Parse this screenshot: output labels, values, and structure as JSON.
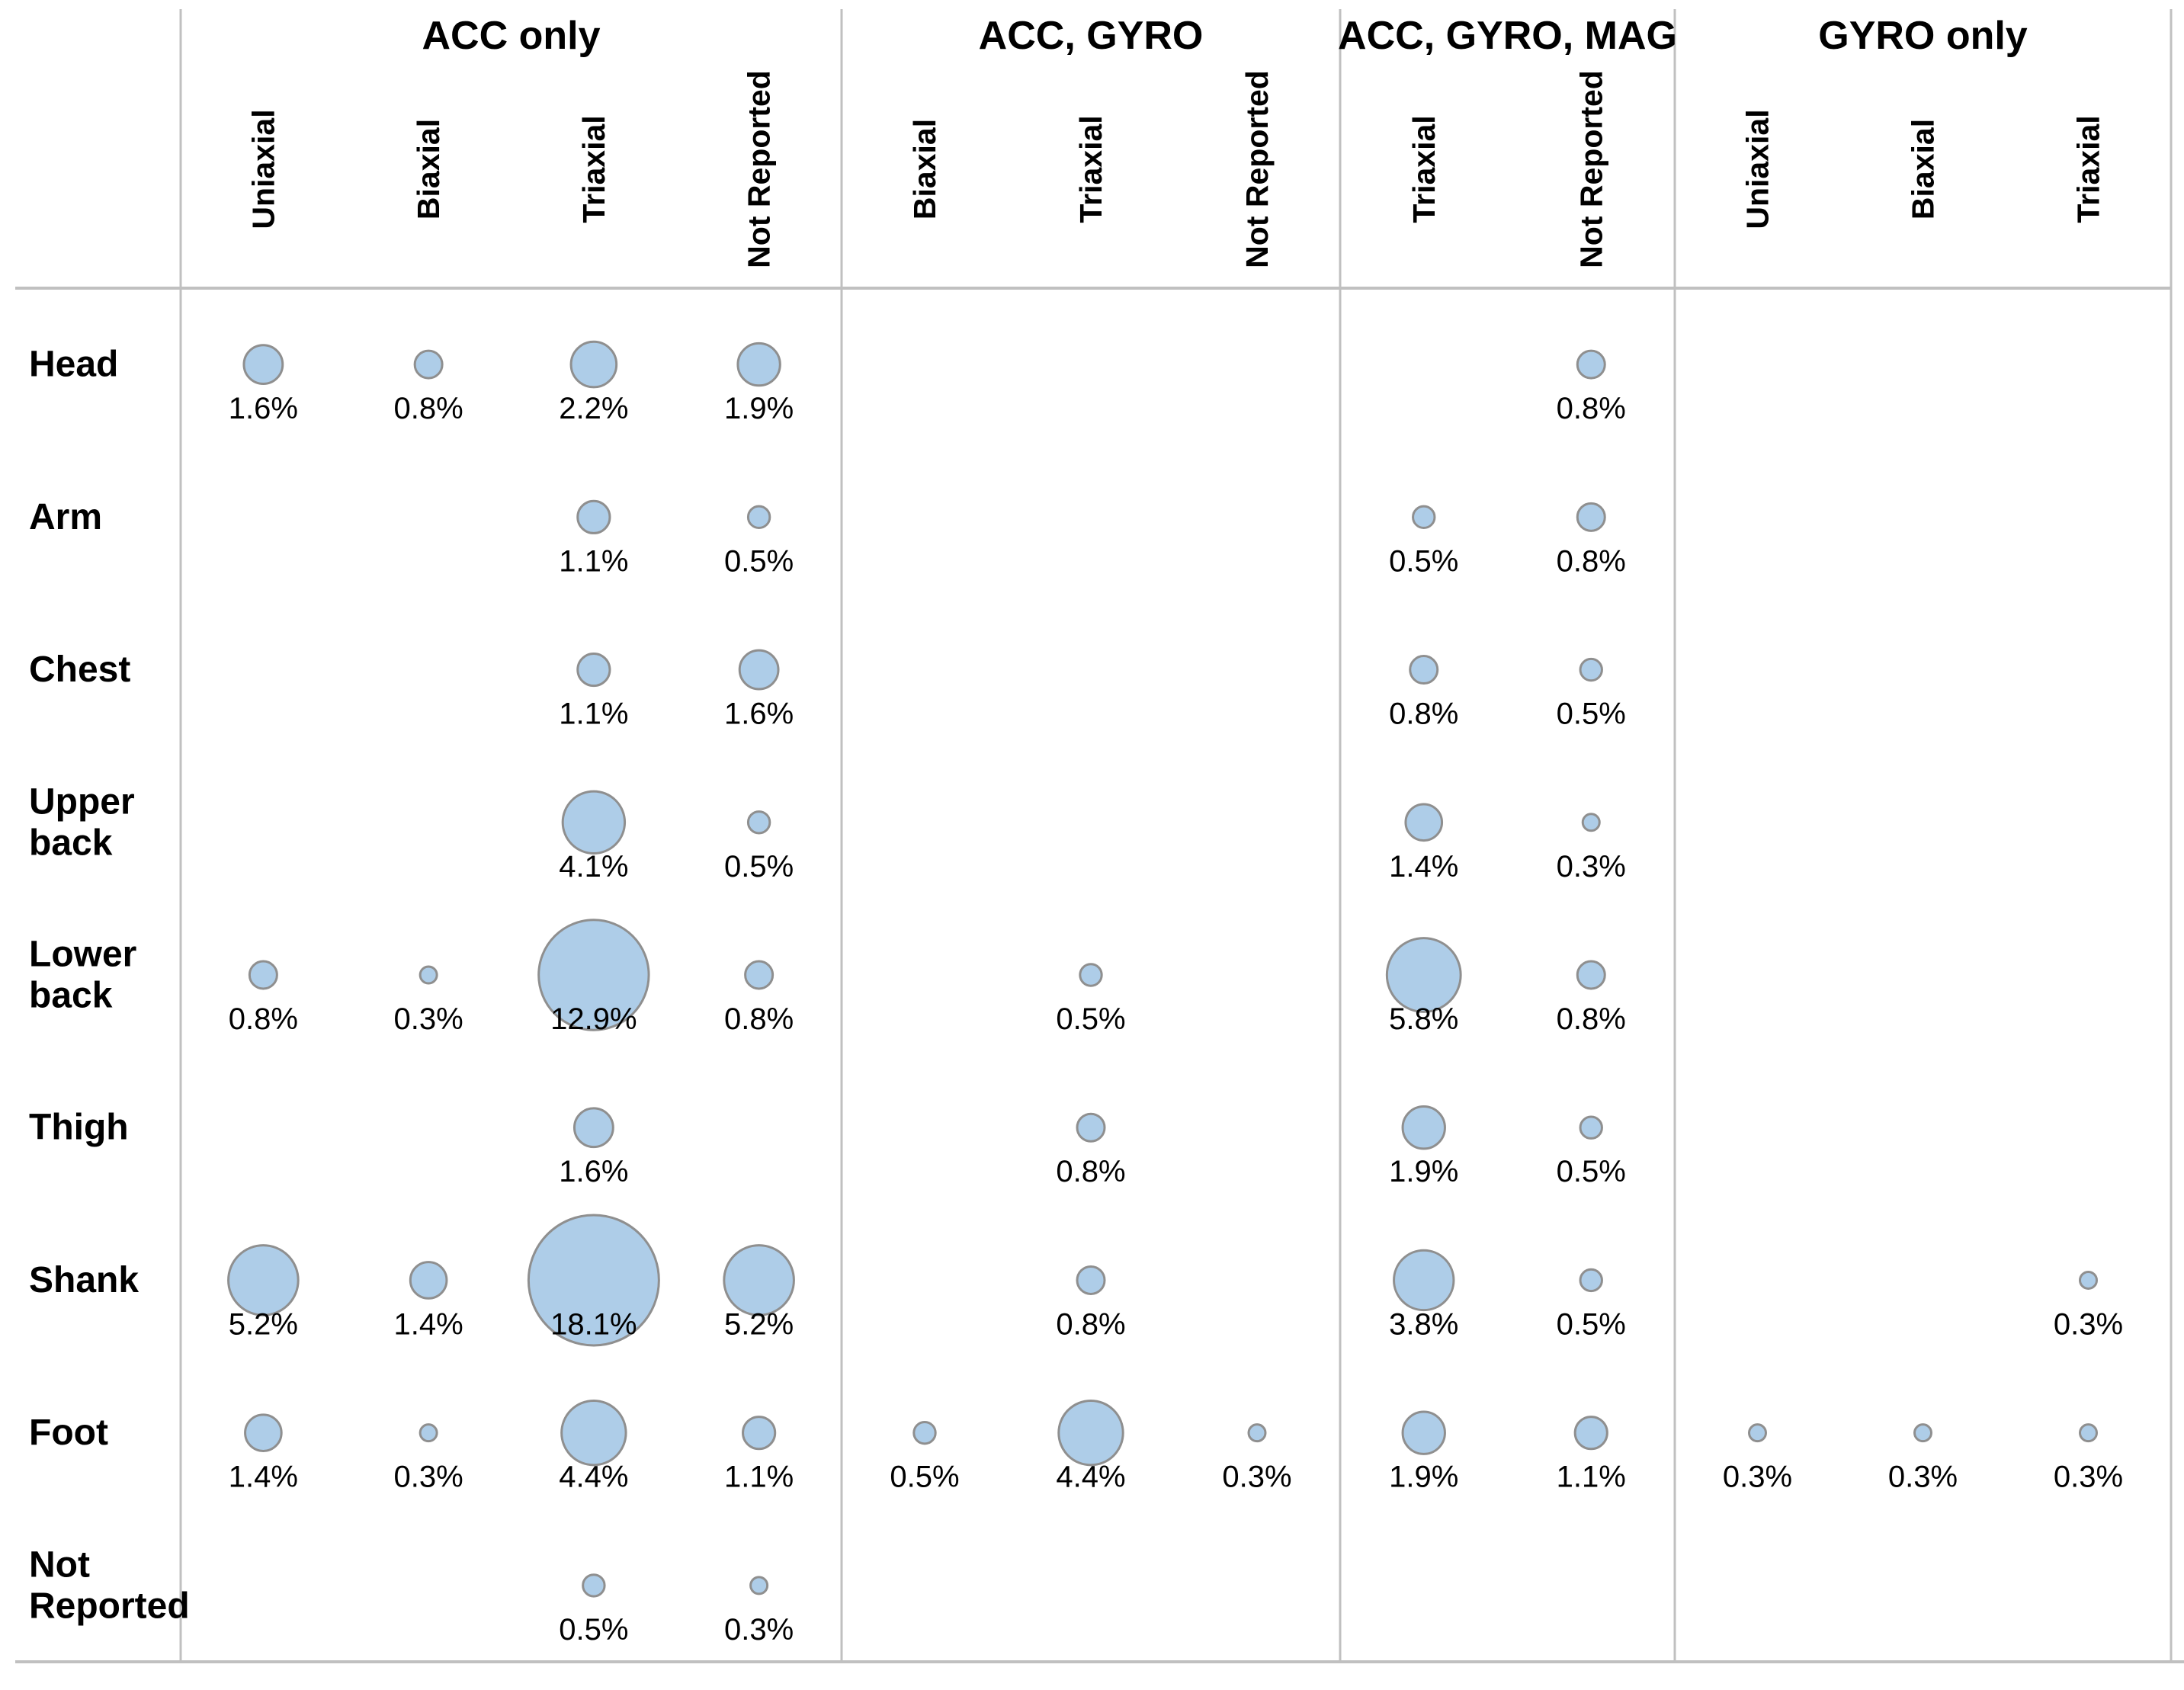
{
  "chart_data": {
    "type": "bubble-matrix",
    "title": "",
    "unit": "%",
    "bubble_fill": "#AECDE8",
    "bubble_stroke": "#8F8F8F",
    "grid_color": "#C0C0C0",
    "groups": [
      {
        "label": "ACC only",
        "columns": [
          "Uniaxial",
          "Biaxial",
          "Triaxial",
          "Not Reported"
        ]
      },
      {
        "label": "ACC, GYRO",
        "columns": [
          "Biaxial",
          "Triaxial",
          "Not Reported"
        ]
      },
      {
        "label": "ACC, GYRO, MAG",
        "columns": [
          "Triaxial",
          "Not Reported"
        ]
      },
      {
        "label": "GYRO only",
        "columns": [
          "Uniaxial",
          "Biaxial",
          "Triaxial"
        ]
      }
    ],
    "rows": [
      "Head",
      "Arm",
      "Chest",
      "Upper back",
      "Lower back",
      "Thigh",
      "Shank",
      "Foot",
      "Not Reported"
    ],
    "values": [
      {
        "row": "Head",
        "group": 0,
        "column": "Uniaxial",
        "value": 1.6,
        "label": "1.6%"
      },
      {
        "row": "Head",
        "group": 0,
        "column": "Biaxial",
        "value": 0.8,
        "label": "0.8%"
      },
      {
        "row": "Head",
        "group": 0,
        "column": "Triaxial",
        "value": 2.2,
        "label": "2.2%"
      },
      {
        "row": "Head",
        "group": 0,
        "column": "Not Reported",
        "value": 1.9,
        "label": "1.9%"
      },
      {
        "row": "Head",
        "group": 2,
        "column": "Not Reported",
        "value": 0.8,
        "label": "0.8%"
      },
      {
        "row": "Arm",
        "group": 0,
        "column": "Triaxial",
        "value": 1.1,
        "label": "1.1%"
      },
      {
        "row": "Arm",
        "group": 0,
        "column": "Not Reported",
        "value": 0.5,
        "label": "0.5%"
      },
      {
        "row": "Arm",
        "group": 2,
        "column": "Triaxial",
        "value": 0.5,
        "label": "0.5%"
      },
      {
        "row": "Arm",
        "group": 2,
        "column": "Not Reported",
        "value": 0.8,
        "label": "0.8%"
      },
      {
        "row": "Chest",
        "group": 0,
        "column": "Triaxial",
        "value": 1.1,
        "label": "1.1%"
      },
      {
        "row": "Chest",
        "group": 0,
        "column": "Not Reported",
        "value": 1.6,
        "label": "1.6%"
      },
      {
        "row": "Chest",
        "group": 2,
        "column": "Triaxial",
        "value": 0.8,
        "label": "0.8%"
      },
      {
        "row": "Chest",
        "group": 2,
        "column": "Not Reported",
        "value": 0.5,
        "label": "0.5%"
      },
      {
        "row": "Upper back",
        "group": 0,
        "column": "Triaxial",
        "value": 4.1,
        "label": "4.1%"
      },
      {
        "row": "Upper back",
        "group": 0,
        "column": "Not Reported",
        "value": 0.5,
        "label": "0.5%"
      },
      {
        "row": "Upper back",
        "group": 2,
        "column": "Triaxial",
        "value": 1.4,
        "label": "1.4%"
      },
      {
        "row": "Upper back",
        "group": 2,
        "column": "Not Reported",
        "value": 0.3,
        "label": "0.3%"
      },
      {
        "row": "Lower back",
        "group": 0,
        "column": "Uniaxial",
        "value": 0.8,
        "label": "0.8%"
      },
      {
        "row": "Lower back",
        "group": 0,
        "column": "Biaxial",
        "value": 0.3,
        "label": "0.3%"
      },
      {
        "row": "Lower back",
        "group": 0,
        "column": "Triaxial",
        "value": 12.9,
        "label": "12.9%"
      },
      {
        "row": "Lower back",
        "group": 0,
        "column": "Not Reported",
        "value": 0.8,
        "label": "0.8%"
      },
      {
        "row": "Lower back",
        "group": 1,
        "column": "Triaxial",
        "value": 0.5,
        "label": "0.5%"
      },
      {
        "row": "Lower back",
        "group": 2,
        "column": "Triaxial",
        "value": 5.8,
        "label": "5.8%"
      },
      {
        "row": "Lower back",
        "group": 2,
        "column": "Not Reported",
        "value": 0.8,
        "label": "0.8%"
      },
      {
        "row": "Thigh",
        "group": 0,
        "column": "Triaxial",
        "value": 1.6,
        "label": "1.6%"
      },
      {
        "row": "Thigh",
        "group": 1,
        "column": "Triaxial",
        "value": 0.8,
        "label": "0.8%"
      },
      {
        "row": "Thigh",
        "group": 2,
        "column": "Triaxial",
        "value": 1.9,
        "label": "1.9%"
      },
      {
        "row": "Thigh",
        "group": 2,
        "column": "Not Reported",
        "value": 0.5,
        "label": "0.5%"
      },
      {
        "row": "Shank",
        "group": 0,
        "column": "Uniaxial",
        "value": 5.2,
        "label": "5.2%"
      },
      {
        "row": "Shank",
        "group": 0,
        "column": "Biaxial",
        "value": 1.4,
        "label": "1.4%"
      },
      {
        "row": "Shank",
        "group": 0,
        "column": "Triaxial",
        "value": 18.1,
        "label": "18.1%"
      },
      {
        "row": "Shank",
        "group": 0,
        "column": "Not Reported",
        "value": 5.2,
        "label": "5.2%"
      },
      {
        "row": "Shank",
        "group": 1,
        "column": "Triaxial",
        "value": 0.8,
        "label": "0.8%"
      },
      {
        "row": "Shank",
        "group": 2,
        "column": "Triaxial",
        "value": 3.8,
        "label": "3.8%"
      },
      {
        "row": "Shank",
        "group": 2,
        "column": "Not Reported",
        "value": 0.5,
        "label": "0.5%"
      },
      {
        "row": "Shank",
        "group": 3,
        "column": "Triaxial",
        "value": 0.3,
        "label": "0.3%"
      },
      {
        "row": "Foot",
        "group": 0,
        "column": "Uniaxial",
        "value": 1.4,
        "label": "1.4%"
      },
      {
        "row": "Foot",
        "group": 0,
        "column": "Biaxial",
        "value": 0.3,
        "label": "0.3%"
      },
      {
        "row": "Foot",
        "group": 0,
        "column": "Triaxial",
        "value": 4.4,
        "label": "4.4%"
      },
      {
        "row": "Foot",
        "group": 0,
        "column": "Not Reported",
        "value": 1.1,
        "label": "1.1%"
      },
      {
        "row": "Foot",
        "group": 1,
        "column": "Biaxial",
        "value": 0.5,
        "label": "0.5%"
      },
      {
        "row": "Foot",
        "group": 1,
        "column": "Triaxial",
        "value": 4.4,
        "label": "4.4%"
      },
      {
        "row": "Foot",
        "group": 1,
        "column": "Not Reported",
        "value": 0.3,
        "label": "0.3%"
      },
      {
        "row": "Foot",
        "group": 2,
        "column": "Triaxial",
        "value": 1.9,
        "label": "1.9%"
      },
      {
        "row": "Foot",
        "group": 2,
        "column": "Not Reported",
        "value": 1.1,
        "label": "1.1%"
      },
      {
        "row": "Foot",
        "group": 3,
        "column": "Uniaxial",
        "value": 0.3,
        "label": "0.3%"
      },
      {
        "row": "Foot",
        "group": 3,
        "column": "Biaxial",
        "value": 0.3,
        "label": "0.3%"
      },
      {
        "row": "Foot",
        "group": 3,
        "column": "Triaxial",
        "value": 0.3,
        "label": "0.3%"
      },
      {
        "row": "Not Reported",
        "group": 0,
        "column": "Triaxial",
        "value": 0.5,
        "label": "0.5%"
      },
      {
        "row": "Not Reported",
        "group": 0,
        "column": "Not Reported",
        "value": 0.3,
        "label": "0.3%"
      }
    ],
    "layout_hints": {
      "bubble_area_proportional_to_value": true,
      "value_labels_below_bubbles": true,
      "column_labels_rotated_90": true
    }
  }
}
